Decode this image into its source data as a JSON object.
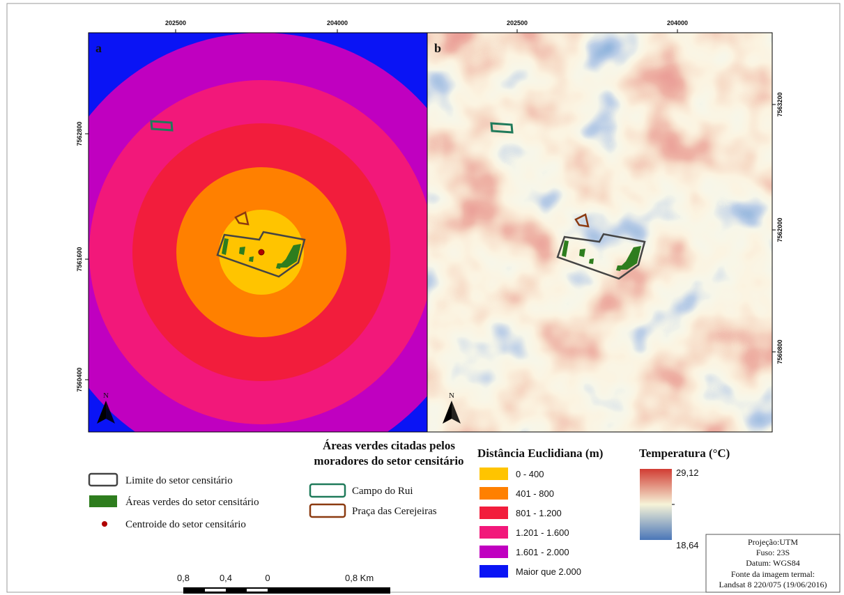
{
  "panels": [
    {
      "label": "a"
    },
    {
      "label": "b"
    }
  ],
  "x_ticks": [
    "202500",
    "204000"
  ],
  "y_ticks_a": [
    "7562800",
    "7561600",
    "7560400"
  ],
  "y_ticks_b": [
    "7563200",
    "7562000",
    "7560800"
  ],
  "north": "N",
  "legend_sector": [
    "Limite do setor censitário",
    "Áreas verdes do setor censitário",
    "Centroide do setor censitário"
  ],
  "legend_green": {
    "title": [
      "Áreas verdes citadas pelos",
      "moradores do setor censitário"
    ],
    "items": [
      "Campo do Rui",
      "Praça das Cerejeiras"
    ]
  },
  "legend_distance": {
    "title": "Distância Euclidiana (m)",
    "items": [
      "0 - 400",
      "401 - 800",
      "801 - 1.200",
      "1.201 - 1.600",
      "1.601 - 2.000",
      "Maior que 2.000"
    ]
  },
  "legend_temp": {
    "title": "Temperatura (°C)",
    "max": "29,12",
    "min": "18,64"
  },
  "scale_bar": [
    "0,8",
    "0,4",
    "0",
    "0,8 Km"
  ],
  "info_box": [
    "Projeção:UTM",
    "Fuso: 23S",
    "Datum: WGS84",
    "Fonte da imagem termal:",
    "Landsat 8 220/075 (19/06/2016)"
  ]
}
